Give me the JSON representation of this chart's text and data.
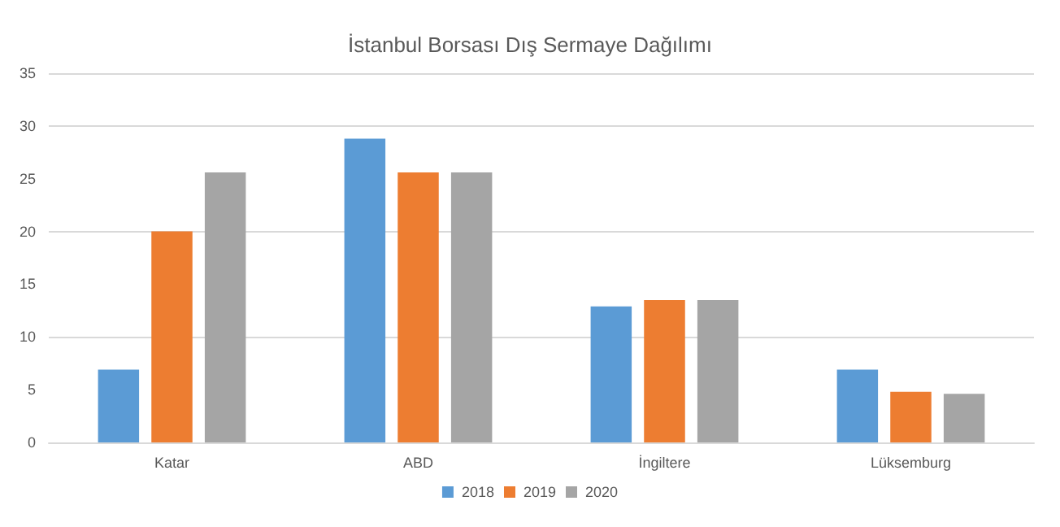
{
  "chart_data": {
    "type": "bar",
    "title": "İstanbul Borsası Dış Sermaye Dağılımı",
    "categories": [
      "Katar",
      "ABD",
      "İngiltere",
      "Lüksemburg"
    ],
    "series": [
      {
        "name": "2018",
        "color": "#5b9bd5",
        "values": [
          6.9,
          28.8,
          12.9,
          6.9
        ]
      },
      {
        "name": "2019",
        "color": "#ed7d31",
        "values": [
          20.0,
          25.6,
          13.5,
          4.8
        ]
      },
      {
        "name": "2020",
        "color": "#a5a5a5",
        "values": [
          25.6,
          25.6,
          13.5,
          4.6
        ]
      }
    ],
    "ylim": [
      0,
      35
    ],
    "yticks": [
      0,
      5,
      10,
      15,
      20,
      25,
      30,
      35
    ],
    "grid": "y",
    "legend": "bottom"
  }
}
